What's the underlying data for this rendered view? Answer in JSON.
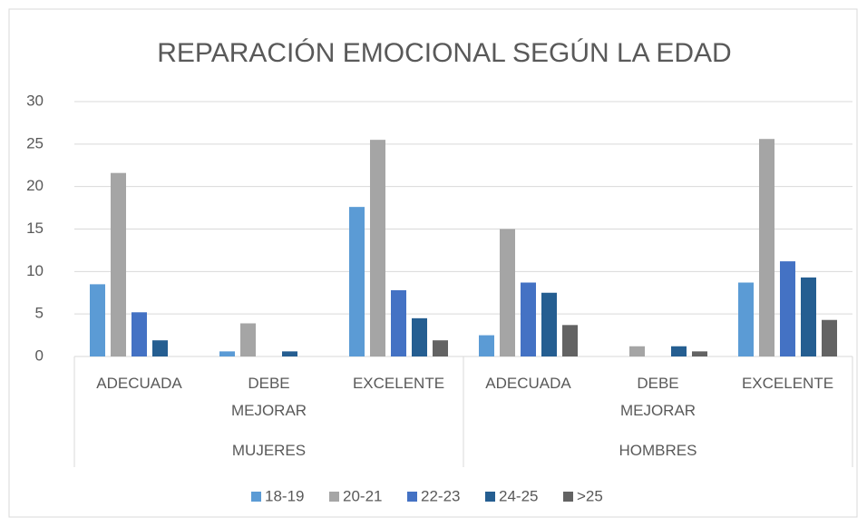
{
  "chart_data": {
    "type": "bar",
    "title": "REPARACIÓN EMOCIONAL SEGÚN LA EDAD",
    "categories": [
      "ADECUADA",
      "DEBE MEJORAR",
      "EXCELENTE",
      "ADECUADA",
      "DEBE MEJORAR",
      "EXCELENTE"
    ],
    "groups": [
      "MUJERES",
      "HOMBRES"
    ],
    "series": [
      {
        "name": "18-19",
        "color": "#5b9bd5",
        "values": [
          8.5,
          0.6,
          17.6,
          2.5,
          0,
          8.7
        ]
      },
      {
        "name": "20-21",
        "color": "#a5a5a5",
        "values": [
          21.6,
          3.9,
          25.5,
          15,
          1.2,
          25.6
        ]
      },
      {
        "name": "22-23",
        "color": "#4472c4",
        "values": [
          5.2,
          0,
          7.8,
          8.7,
          0,
          11.2
        ]
      },
      {
        "name": "24-25",
        "color": "#255e91",
        "values": [
          1.9,
          0.6,
          4.5,
          7.5,
          1.2,
          9.3
        ]
      },
      {
        "name": ">25",
        "color": "#636363",
        "values": [
          0,
          0,
          1.9,
          3.7,
          0.6,
          4.3
        ]
      }
    ],
    "ylim": [
      0,
      30
    ],
    "yticks": [
      0,
      5,
      10,
      15,
      20,
      25,
      30
    ],
    "grid": true,
    "legend": "bottom"
  }
}
